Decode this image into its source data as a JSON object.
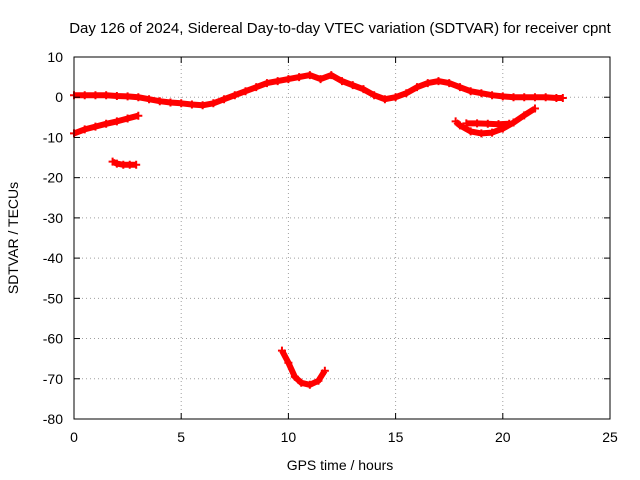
{
  "chart_data": {
    "type": "scatter",
    "title": "Day 126 of 2024, Sidereal Day-to-day VTEC variation (SDTVAR) for receiver cpnt",
    "xlabel": "GPS time / hours",
    "ylabel": "SDTVAR / TECUs",
    "xlim": [
      0,
      25
    ],
    "ylim": [
      -80,
      10
    ],
    "xticks": [
      "0",
      "5",
      "10",
      "15",
      "20",
      "25"
    ],
    "yticks": [
      "10",
      "0",
      "-10",
      "-20",
      "-30",
      "-40",
      "-50",
      "-60",
      "-70",
      "-80"
    ],
    "grid": true,
    "color": "#ff0000",
    "series": [
      {
        "name": "arc-main",
        "x": [
          0.0,
          0.5,
          1.0,
          1.5,
          2.0,
          2.5,
          3.0,
          3.5,
          4.0,
          4.5,
          5.0,
          5.5,
          6.0,
          6.5,
          7.0,
          7.5,
          8.0,
          8.5,
          9.0,
          9.5,
          10.0,
          10.5,
          11.0,
          11.5,
          12.0,
          12.5,
          13.0,
          13.5,
          14.0,
          14.5,
          15.0,
          15.5,
          16.0,
          16.5,
          17.0,
          17.5,
          18.0,
          18.5,
          19.0,
          19.5,
          20.0,
          20.5,
          21.0,
          21.5,
          22.0,
          22.5,
          22.8
        ],
        "y": [
          0.5,
          0.5,
          0.5,
          0.5,
          0.3,
          0.2,
          0.0,
          -0.5,
          -1.0,
          -1.3,
          -1.5,
          -1.8,
          -2.0,
          -1.5,
          -0.5,
          0.5,
          1.5,
          2.5,
          3.5,
          4.0,
          4.5,
          5.0,
          5.5,
          4.5,
          5.5,
          4.0,
          3.0,
          2.0,
          0.5,
          -0.5,
          0.0,
          1.0,
          2.5,
          3.5,
          4.0,
          3.5,
          2.5,
          1.5,
          1.0,
          0.5,
          0.2,
          0.0,
          0.0,
          0.0,
          0.0,
          -0.2,
          -0.2
        ]
      },
      {
        "name": "arc-early-decline",
        "x": [
          0.0,
          0.5,
          1.0,
          1.5,
          2.0,
          2.5,
          3.0
        ],
        "y": [
          -9.0,
          -8.0,
          -7.3,
          -6.6,
          -6.0,
          -5.3,
          -4.6
        ]
      },
      {
        "name": "arc-early-low",
        "x": [
          1.8,
          2.0,
          2.3,
          2.6,
          2.9
        ],
        "y": [
          -16.0,
          -16.5,
          -16.8,
          -16.8,
          -16.8
        ]
      },
      {
        "name": "arc-late-dip",
        "x": [
          17.8,
          18.0,
          18.5,
          19.0,
          19.5,
          20.0,
          20.5,
          21.0,
          21.5
        ],
        "y": [
          -6.0,
          -7.0,
          -8.5,
          -9.0,
          -8.8,
          -7.8,
          -6.3,
          -4.5,
          -2.8
        ]
      },
      {
        "name": "arc-late-flat",
        "x": [
          18.3,
          18.8,
          19.3,
          19.8,
          20.3
        ],
        "y": [
          -6.5,
          -6.5,
          -6.6,
          -6.7,
          -6.6
        ]
      },
      {
        "name": "arc-midday-deep",
        "x": [
          9.7,
          10.0,
          10.3,
          10.6,
          11.0,
          11.4,
          11.7
        ],
        "y": [
          -63.0,
          -66.0,
          -69.5,
          -71.0,
          -71.5,
          -70.5,
          -68.0
        ]
      }
    ]
  }
}
